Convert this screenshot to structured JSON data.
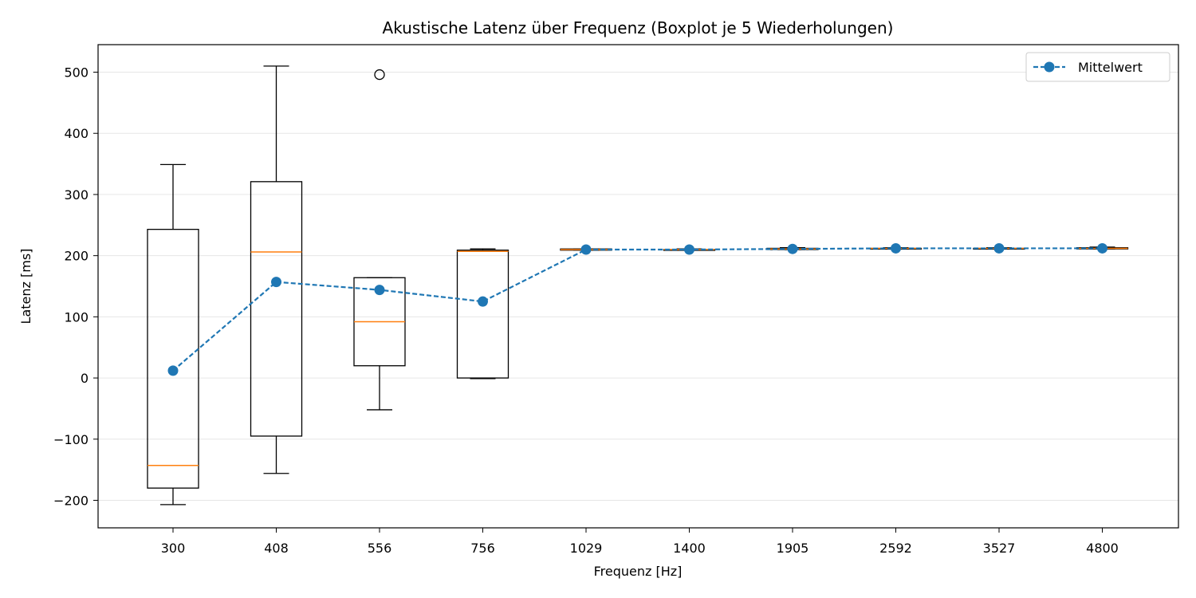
{
  "chart_data": {
    "type": "boxplot",
    "title": "Akustische Latenz über Frequenz (Boxplot je 5 Wiederholungen)",
    "xlabel": "Frequenz [Hz]",
    "ylabel": "Latenz [ms]",
    "categories": [
      "300",
      "408",
      "556",
      "756",
      "1029",
      "1400",
      "1905",
      "2592",
      "3527",
      "4800"
    ],
    "ylim": [
      -245,
      545
    ],
    "yticks": [
      -200,
      -100,
      0,
      100,
      200,
      300,
      400,
      500
    ],
    "ytick_labels": [
      "−200",
      "−100",
      "0",
      "100",
      "200",
      "300",
      "400",
      "500"
    ],
    "grid": "y",
    "boxes": [
      {
        "whislo": -207,
        "q1": -180,
        "med": -143,
        "q3": 243,
        "whishi": 349,
        "fliers": []
      },
      {
        "whislo": -156,
        "q1": -95,
        "med": 206,
        "q3": 321,
        "whishi": 510,
        "fliers": []
      },
      {
        "whislo": -52,
        "q1": 20,
        "med": 92,
        "q3": 164,
        "whishi": 164,
        "fliers": [
          496
        ]
      },
      {
        "whislo": -1,
        "q1": 0,
        "med": 207,
        "q3": 209,
        "whishi": 211,
        "fliers": []
      },
      {
        "whislo": 209,
        "q1": 209,
        "med": 210,
        "q3": 211,
        "whishi": 211,
        "fliers": []
      },
      {
        "whislo": 209,
        "q1": 209,
        "med": 210,
        "q3": 210,
        "whishi": 211,
        "fliers": []
      },
      {
        "whislo": 210,
        "q1": 210,
        "med": 211,
        "q3": 212,
        "whishi": 213,
        "fliers": []
      },
      {
        "whislo": 211,
        "q1": 211,
        "med": 212,
        "q3": 212,
        "whishi": 213,
        "fliers": []
      },
      {
        "whislo": 211,
        "q1": 211,
        "med": 212,
        "q3": 212,
        "whishi": 213,
        "fliers": []
      },
      {
        "whislo": 211,
        "q1": 211,
        "med": 212,
        "q3": 213,
        "whishi": 214,
        "fliers": []
      }
    ],
    "series": [
      {
        "name": "Mittelwert",
        "values": [
          12,
          157,
          144,
          125,
          210,
          210,
          211,
          212,
          212,
          212
        ]
      }
    ],
    "legend": {
      "position": "top-right",
      "label": "Mittelwert"
    },
    "colors": {
      "box": "#000000",
      "median": "#ff7f0e",
      "mean": "#1f77b4",
      "grid": "#e6e6e6"
    }
  }
}
